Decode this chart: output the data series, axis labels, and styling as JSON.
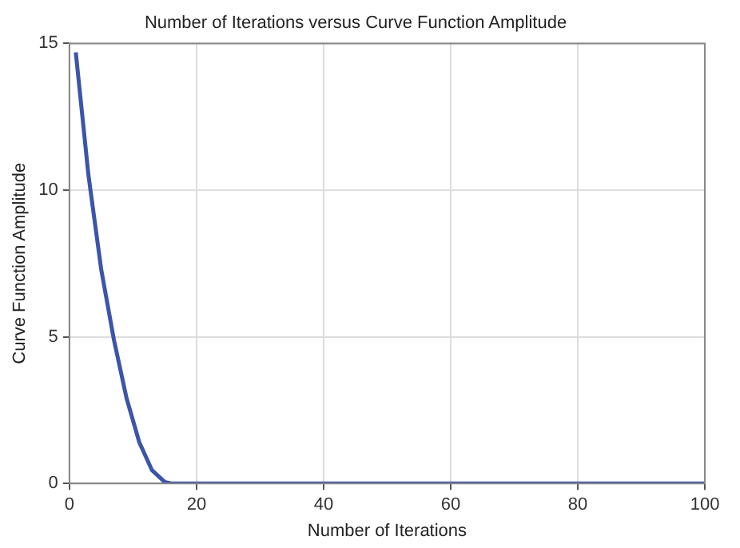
{
  "chart_data": {
    "type": "line",
    "title": "Number of Iterations versus Curve Function Amplitude",
    "xlabel": "Number of Iterations",
    "ylabel": "Curve Function Amplitude",
    "x": [
      1,
      3,
      5,
      7,
      9,
      11,
      13,
      15,
      16,
      100
    ],
    "series": [
      {
        "color": "#3b55a8",
        "values": [
          14.7,
          10.5,
          7.3,
          4.9,
          2.9,
          1.4,
          0.45,
          0.05,
          0,
          0
        ]
      }
    ],
    "xlim": [
      0,
      100
    ],
    "xticks": [
      0,
      20,
      40,
      60,
      80,
      100
    ],
    "ylim": [
      0,
      15
    ],
    "yticks": [
      0,
      5,
      10,
      15
    ],
    "grid": true,
    "legend": false,
    "marker": "none",
    "line_style": "solid"
  }
}
